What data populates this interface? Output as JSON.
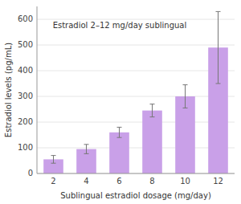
{
  "chart_data": {
    "type": "bar",
    "title": "Estradiol 2–12 mg/day sublingual",
    "xlabel": "Sublingual estradiol dosage (mg/day)",
    "ylabel": "Estradiol levels (pg/mL)",
    "categories": [
      2,
      4,
      6,
      8,
      10,
      12
    ],
    "values": [
      55,
      95,
      160,
      245,
      300,
      490
    ],
    "errors": [
      15,
      18,
      20,
      25,
      45,
      140
    ],
    "color": "#c9a0e8",
    "ylim": [
      0,
      650
    ],
    "yticks": [
      0,
      100,
      200,
      300,
      400,
      500,
      600
    ],
    "grid": true
  }
}
